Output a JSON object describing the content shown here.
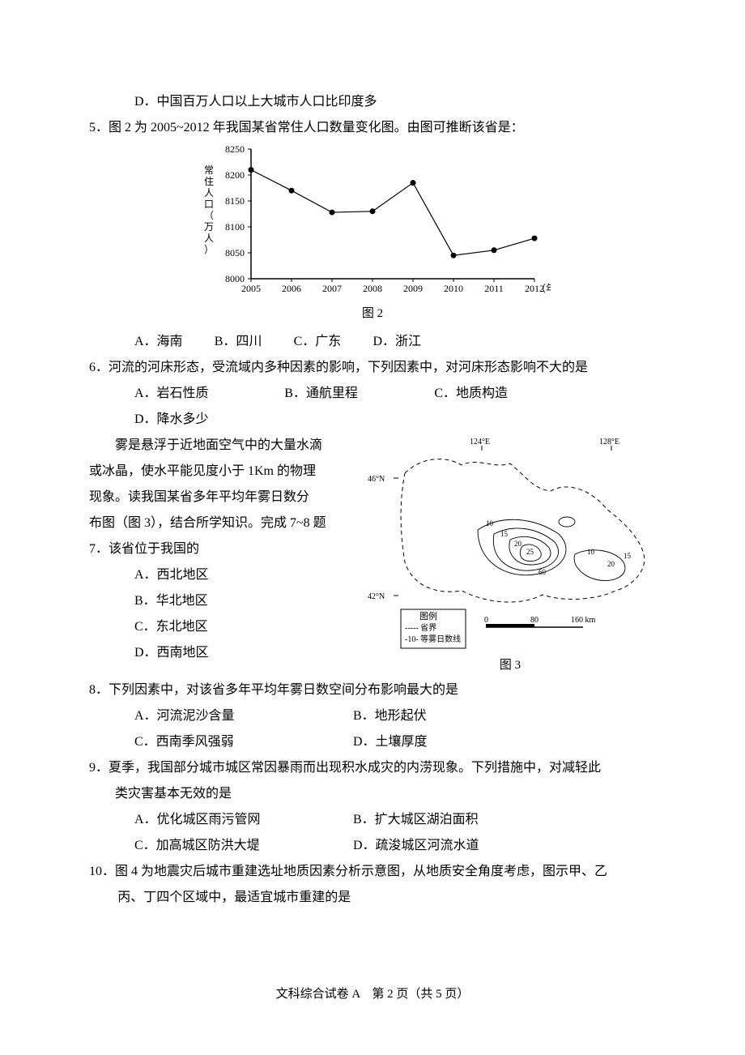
{
  "q4": {
    "opt_d": "D．中国百万人口以上大城市人口比印度多"
  },
  "q5": {
    "stem": "5．图 2 为 2005~2012 年我国某省常住人口数量变化图。由图可推断该省是：",
    "chart_caption": "图 2",
    "opts": {
      "a": "A．海南",
      "b": "B．四川",
      "c": "C．广东",
      "d": "D．浙江"
    },
    "chart": {
      "type": "line",
      "x_label_suffix": "（年）",
      "y_label": "常住人口（万人）",
      "x_values": [
        "2005",
        "2006",
        "2007",
        "2008",
        "2009",
        "2010",
        "2011",
        "2012"
      ],
      "y_values": [
        8210,
        8170,
        8128,
        8130,
        8185,
        8045,
        8055,
        8078
      ],
      "y_min": 8000,
      "y_max": 8250,
      "y_step": 50,
      "axis_color": "#000000",
      "marker_color": "#000000",
      "line_color": "#000000",
      "marker_radius": 3.5,
      "line_width": 1.2,
      "label_fontsize": 12
    }
  },
  "q6": {
    "stem": "6．河流的河床形态，受流域内多种因素的影响，下列因素中，对河床形态影响不大的是",
    "opts": {
      "a": "A．岩石性质",
      "b": "B．通航里程",
      "c": "C．地质构造",
      "d": "D．降水多少"
    }
  },
  "fog_intro": {
    "l1": "　　雾是悬浮于近地面空气中的大量水滴",
    "l2": "或冰晶，使水平能见度小于 1Km 的物理",
    "l3": "现象。读我国某省多年平均年雾日数分",
    "l4": "布图（图 3），结合所学知识。完成 7~8 题"
  },
  "q7": {
    "stem": "7．该省位于我国的",
    "opts": {
      "a": "A．西北地区",
      "b": "B．华北地区",
      "c": "C．东北地区",
      "d": "D．西南地区"
    }
  },
  "map": {
    "caption": "图 3",
    "lon_124": "124°E",
    "lon_128": "128°E",
    "lat_46": "46°N",
    "lat_42": "42°N",
    "legend_title": "图例",
    "legend_border": "----- 省界",
    "legend_iso": "-10- 等雾日数线",
    "scale_0": "0",
    "scale_80": "80",
    "scale_160": "160 km",
    "iso_values": [
      "10",
      "15",
      "20",
      "25",
      "60"
    ],
    "line_color": "#000000",
    "bg_color": "#ffffff",
    "fontsize": 10
  },
  "q8": {
    "stem": "8．下列因素中，对该省多年平均年雾日数空间分布影响最大的是",
    "opts": {
      "a": "A．河流泥沙含量",
      "b": "B．地形起伏",
      "c": "C．西南季风强弱",
      "d": "D．土壤厚度"
    }
  },
  "q9": {
    "stem1": "9．夏季，我国部分城市城区常因暴雨而出现积水成灾的内涝现象。下列措施中，对减轻此",
    "stem2": "类灾害基本无效的是",
    "opts": {
      "a": "A．优化城区雨污管网",
      "b": "B．扩大城区湖泊面积",
      "c": "C．加高城区防洪大堤",
      "d": "D．疏浚城区河流水道"
    }
  },
  "q10": {
    "stem1": "10．图 4 为地震灾后城市重建选址地质因素分析示意图，从地质安全角度考虑，图示甲、乙",
    "stem2": "丙、丁四个区域中，最适宜城市重建的是"
  },
  "footer": "文科综合试卷 A　第 2 页（共 5 页）"
}
